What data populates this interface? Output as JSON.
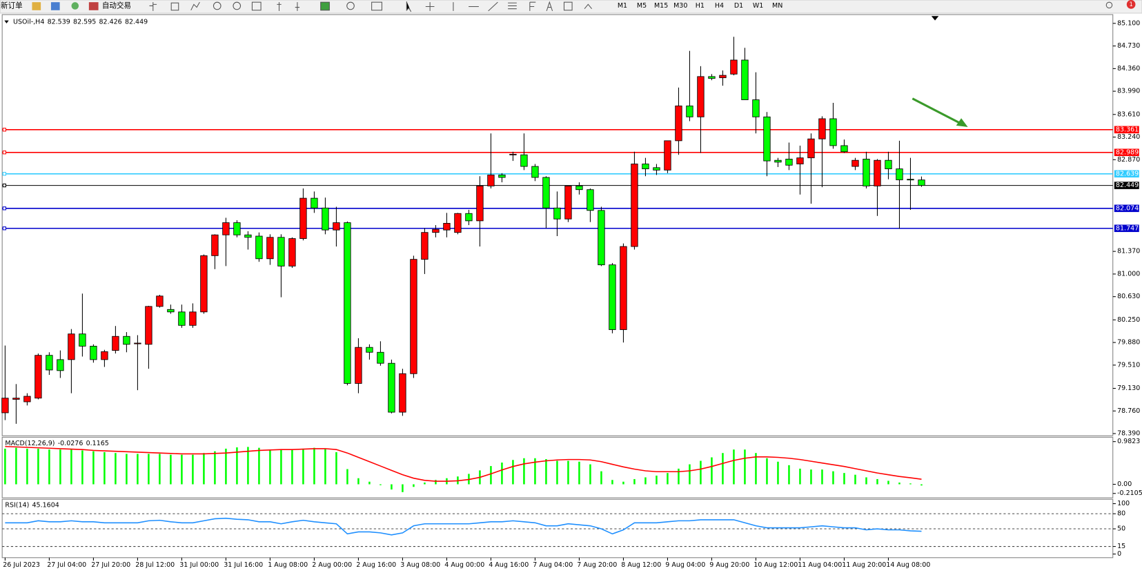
{
  "toolbar": {
    "new_order": "新订单",
    "auto_trading": "自动交易",
    "timeframes": [
      "M1",
      "M5",
      "M15",
      "M30",
      "H1",
      "H4",
      "D1",
      "W1",
      "MN"
    ],
    "alerts": 1
  },
  "chart_data": [
    {
      "type": "candlestick",
      "title": "USOil-,H4",
      "categories": [
        "26 Jul 2023",
        null,
        null,
        null,
        "27 Jul 04:00",
        null,
        null,
        null,
        "27 Jul 20:00",
        null,
        null,
        null,
        "28 Jul 12:00",
        null,
        null,
        null,
        "31 Jul 00:00",
        null,
        null,
        null,
        "31 Jul 16:00",
        null,
        null,
        null,
        "1 Aug 08:00",
        null,
        null,
        null,
        "2 Aug 00:00",
        null,
        null,
        null,
        "2 Aug 16:00",
        null,
        null,
        null,
        "3 Aug 08:00",
        null,
        null,
        null,
        "4 Aug 00:00",
        null,
        null,
        null,
        "4 Aug 16:00",
        null,
        null,
        null,
        "7 Aug 04:00",
        null,
        null,
        null,
        "7 Aug 20:00",
        null,
        null,
        null,
        "8 Aug 12:00",
        null,
        null,
        null,
        "9 Aug 04:00",
        null,
        null,
        null,
        "9 Aug 20:00",
        null,
        null,
        null,
        "10 Aug 12:00",
        null,
        null,
        null,
        "11 Aug 04:00",
        null,
        null,
        null,
        "11 Aug 20:00",
        null,
        null,
        null,
        "14 Aug 08:00",
        null,
        null,
        null
      ],
      "open": [
        78.73,
        78.95,
        78.91,
        78.97,
        79.67,
        79.6,
        79.6,
        80.02,
        79.82,
        79.6,
        79.75,
        79.98,
        79.86,
        79.85,
        80.47,
        80.42,
        80.38,
        80.16,
        80.38,
        81.3,
        81.64,
        81.84,
        81.64,
        81.62,
        81.25,
        81.6,
        81.13,
        81.58,
        82.24,
        82.08,
        81.72,
        81.84,
        79.21,
        79.8,
        79.72,
        79.54,
        78.74,
        79.37,
        81.24,
        81.68,
        81.72,
        81.68,
        81.99,
        81.87,
        82.44,
        82.62,
        82.95,
        82.95,
        82.76,
        82.58,
        82.08,
        81.9,
        82.44,
        82.38,
        82.04,
        81.15,
        80.09,
        81.45,
        82.8,
        82.74,
        82.7,
        83.18,
        83.75,
        83.57,
        84.23,
        84.21,
        84.27,
        84.5,
        83.85,
        83.57,
        82.86,
        82.88,
        82.8,
        82.9,
        83.21,
        83.54,
        83.1,
        82.76,
        82.88,
        82.44,
        82.86,
        82.72,
        82.55,
        82.539
      ],
      "high": [
        79.83,
        79.2,
        79.05,
        79.7,
        79.72,
        79.75,
        80.1,
        80.68,
        79.85,
        79.76,
        80.15,
        80.05,
        80.0,
        80.48,
        80.66,
        80.5,
        80.5,
        80.52,
        81.32,
        81.65,
        81.92,
        81.88,
        81.7,
        81.68,
        81.65,
        81.65,
        81.6,
        82.4,
        82.35,
        82.25,
        82.1,
        81.86,
        79.95,
        79.85,
        79.9,
        79.6,
        79.45,
        81.3,
        81.75,
        81.8,
        82.0,
        82.0,
        82.05,
        82.6,
        83.3,
        82.65,
        83.0,
        83.3,
        82.8,
        82.6,
        82.35,
        82.45,
        82.5,
        82.4,
        82.1,
        81.18,
        81.5,
        83.0,
        82.9,
        82.8,
        83.18,
        84.05,
        84.65,
        84.4,
        84.27,
        84.33,
        84.88,
        84.7,
        84.3,
        83.65,
        82.9,
        83.15,
        83.1,
        83.3,
        83.58,
        83.8,
        83.2,
        82.9,
        83.0,
        82.88,
        83.0,
        83.18,
        82.9,
        82.595
      ],
      "low": [
        78.61,
        78.55,
        78.85,
        78.95,
        79.35,
        79.3,
        79.05,
        79.65,
        79.55,
        79.48,
        79.7,
        79.72,
        79.1,
        79.45,
        80.45,
        80.35,
        80.12,
        80.12,
        80.35,
        81.08,
        81.13,
        81.6,
        81.4,
        81.2,
        81.15,
        80.62,
        81.1,
        81.55,
        82.0,
        81.65,
        81.45,
        79.18,
        79.05,
        79.6,
        79.5,
        78.72,
        78.68,
        79.3,
        81.0,
        81.6,
        81.6,
        81.65,
        81.8,
        81.45,
        82.4,
        82.5,
        82.85,
        82.7,
        82.52,
        81.75,
        81.62,
        81.85,
        82.3,
        81.85,
        81.13,
        80.03,
        79.88,
        81.4,
        82.6,
        82.62,
        82.65,
        82.95,
        83.5,
        82.98,
        84.17,
        84.08,
        84.25,
        83.85,
        83.3,
        82.6,
        82.75,
        82.7,
        82.3,
        82.15,
        82.42,
        83.05,
        82.98,
        82.7,
        82.4,
        81.95,
        82.55,
        81.74,
        82.05,
        82.426
      ],
      "close": [
        78.97,
        78.97,
        79.0,
        79.67,
        79.43,
        79.42,
        80.02,
        79.82,
        79.6,
        79.73,
        79.98,
        79.85,
        79.87,
        80.47,
        80.64,
        80.38,
        80.16,
        80.38,
        81.3,
        81.64,
        81.84,
        81.64,
        81.6,
        81.25,
        81.6,
        81.13,
        81.58,
        82.24,
        82.08,
        81.72,
        81.84,
        79.21,
        79.8,
        79.72,
        79.54,
        78.74,
        79.37,
        81.24,
        81.68,
        81.73,
        81.83,
        81.99,
        81.87,
        82.44,
        82.62,
        82.58,
        82.96,
        82.76,
        82.58,
        82.08,
        81.9,
        82.44,
        82.38,
        82.04,
        81.15,
        80.09,
        81.45,
        82.8,
        82.72,
        82.7,
        83.18,
        83.75,
        83.57,
        84.23,
        84.2,
        84.25,
        84.5,
        83.85,
        83.57,
        82.85,
        82.83,
        82.78,
        82.9,
        83.21,
        83.54,
        83.1,
        83.0,
        82.86,
        82.44,
        82.86,
        82.72,
        82.54,
        82.54,
        82.449
      ],
      "up_color": "#ff0000",
      "down_color": "#00ff00",
      "ylim": [
        78.39,
        85.1
      ],
      "yticks": [
        {
          "value": 85.1,
          "label": "85.100"
        },
        {
          "value": 84.73,
          "label": "84.730"
        },
        {
          "value": 84.36,
          "label": "84.360"
        },
        {
          "value": 83.99,
          "label": "83.990"
        },
        {
          "value": 83.61,
          "label": "83.610"
        },
        {
          "value": 83.24,
          "label": "83.240"
        },
        {
          "value": 82.87,
          "label": "82.870"
        },
        {
          "value": 81.37,
          "label": "81.370"
        },
        {
          "value": 81.0,
          "label": "81.000"
        },
        {
          "value": 80.63,
          "label": "80.630"
        },
        {
          "value": 80.25,
          "label": "80.250"
        },
        {
          "value": 79.88,
          "label": "79.880"
        },
        {
          "value": 79.51,
          "label": "79.510"
        },
        {
          "value": 79.13,
          "label": "79.130"
        },
        {
          "value": 78.76,
          "label": "78.760"
        },
        {
          "value": 78.39,
          "label": "78.390"
        }
      ],
      "hlines": [
        {
          "value": 83.361,
          "color": "#ff0000"
        },
        {
          "value": 82.989,
          "color": "#ff0000"
        },
        {
          "value": 82.639,
          "color": "#33ccff"
        },
        {
          "value": 82.449,
          "color": "#000000"
        },
        {
          "value": 82.074,
          "color": "#0000cc"
        },
        {
          "value": 81.747,
          "color": "#0000cc"
        }
      ]
    },
    {
      "type": "macd",
      "title": "MACD(12,26,9)",
      "histogram": [
        0.82,
        0.84,
        0.82,
        0.82,
        0.8,
        0.8,
        0.8,
        0.78,
        0.76,
        0.74,
        0.72,
        0.7,
        0.7,
        0.7,
        0.7,
        0.68,
        0.68,
        0.68,
        0.72,
        0.76,
        0.82,
        0.85,
        0.86,
        0.84,
        0.8,
        0.8,
        0.8,
        0.82,
        0.84,
        0.82,
        0.74,
        0.35,
        0.14,
        0.06,
        -0.02,
        -0.12,
        -0.18,
        -0.06,
        0.04,
        0.1,
        0.14,
        0.18,
        0.24,
        0.32,
        0.42,
        0.5,
        0.56,
        0.6,
        0.6,
        0.58,
        0.54,
        0.54,
        0.52,
        0.46,
        0.3,
        0.1,
        0.06,
        0.12,
        0.16,
        0.2,
        0.26,
        0.36,
        0.46,
        0.54,
        0.62,
        0.72,
        0.8,
        0.8,
        0.72,
        0.6,
        0.52,
        0.44,
        0.36,
        0.34,
        0.34,
        0.3,
        0.26,
        0.22,
        0.16,
        0.12,
        0.08,
        0.04,
        0.02,
        -0.0276
      ],
      "signal": [
        0.87,
        0.86,
        0.85,
        0.84,
        0.83,
        0.82,
        0.81,
        0.8,
        0.78,
        0.77,
        0.76,
        0.75,
        0.74,
        0.73,
        0.72,
        0.71,
        0.7,
        0.7,
        0.7,
        0.71,
        0.72,
        0.74,
        0.76,
        0.78,
        0.79,
        0.8,
        0.8,
        0.81,
        0.82,
        0.82,
        0.8,
        0.72,
        0.62,
        0.52,
        0.42,
        0.32,
        0.22,
        0.14,
        0.09,
        0.07,
        0.07,
        0.08,
        0.11,
        0.16,
        0.24,
        0.33,
        0.41,
        0.47,
        0.51,
        0.54,
        0.56,
        0.57,
        0.57,
        0.56,
        0.52,
        0.46,
        0.4,
        0.35,
        0.31,
        0.29,
        0.29,
        0.29,
        0.31,
        0.35,
        0.41,
        0.48,
        0.55,
        0.6,
        0.63,
        0.63,
        0.62,
        0.6,
        0.57,
        0.53,
        0.49,
        0.45,
        0.41,
        0.36,
        0.31,
        0.26,
        0.22,
        0.18,
        0.15,
        0.1165
      ],
      "histogram_color": "#00ff00",
      "signal_color": "#ff0000",
      "ylim": [
        -0.2105,
        0.9823
      ],
      "yticks": [
        0.9823,
        {
          "value": 0,
          "label": "0.00"
        },
        -0.2105
      ]
    },
    {
      "type": "rsi",
      "title": "RSI(14)",
      "values": [
        62,
        62,
        62,
        66,
        64,
        64,
        66,
        64,
        64,
        62,
        62,
        62,
        62,
        66,
        67,
        64,
        62,
        62,
        66,
        70,
        71,
        69,
        68,
        64,
        64,
        60,
        64,
        67,
        64,
        62,
        60,
        40,
        44,
        44,
        42,
        38,
        42,
        56,
        60,
        60,
        60,
        60,
        60,
        62,
        64,
        64,
        66,
        64,
        62,
        56,
        56,
        60,
        58,
        56,
        50,
        40,
        48,
        62,
        62,
        62,
        64,
        66,
        66,
        68,
        68,
        68,
        68,
        62,
        56,
        52,
        52,
        52,
        52,
        54,
        56,
        54,
        52,
        52,
        48,
        50,
        48,
        48,
        46,
        45.1604
      ],
      "color": "#1e8fff",
      "ylim": [
        0,
        100
      ],
      "yticks": [
        100,
        80,
        50,
        15,
        0
      ]
    }
  ]
}
